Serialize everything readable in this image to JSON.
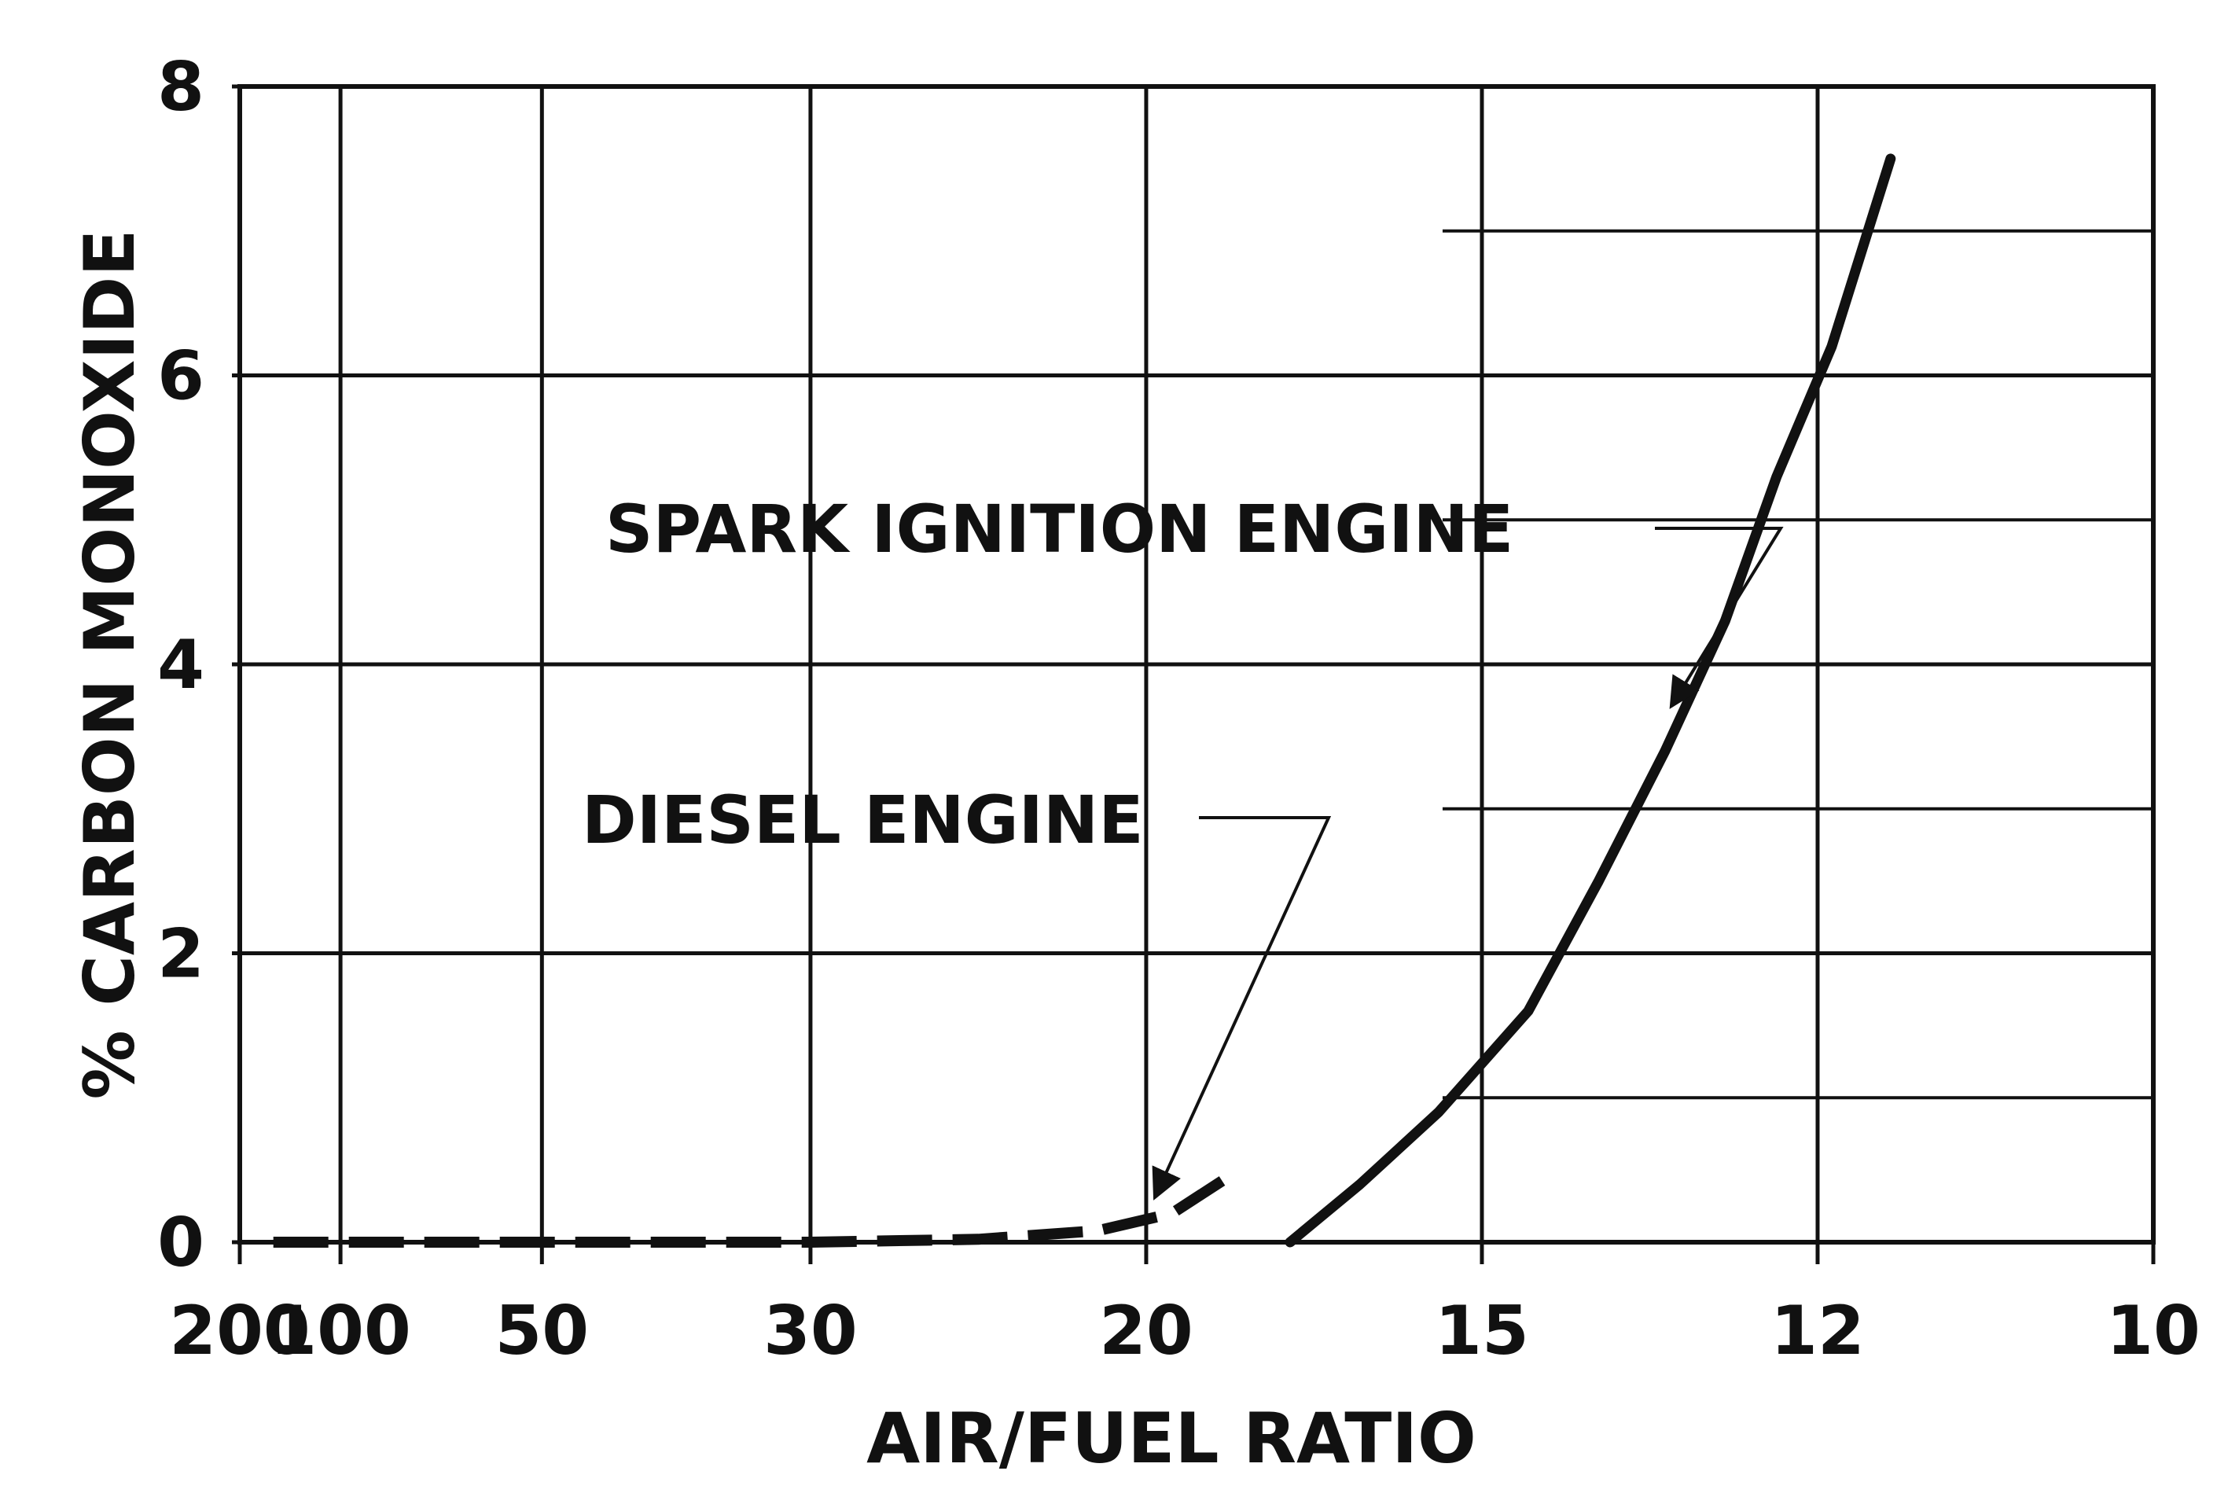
{
  "chart_data": {
    "type": "line",
    "xlabel": "AIR/FUEL RATIO",
    "ylabel": "% CARBON MONOXIDE",
    "x_scale": "reciprocal",
    "xlim": [
      200,
      10
    ],
    "ylim": [
      0,
      8
    ],
    "x_ticks": [
      200,
      100,
      50,
      30,
      20,
      15,
      12,
      10
    ],
    "y_ticks": [
      0,
      2,
      4,
      6,
      8
    ],
    "grid": true,
    "legend": "none",
    "series": [
      {
        "name": "SPARK IGNITION ENGINE",
        "style": "solid",
        "points": [
          [
            17.5,
            0.0
          ],
          [
            16.5,
            0.4
          ],
          [
            15.5,
            0.9
          ],
          [
            14.5,
            1.6
          ],
          [
            13.8,
            2.5
          ],
          [
            13.2,
            3.4
          ],
          [
            12.7,
            4.3
          ],
          [
            12.3,
            5.3
          ],
          [
            11.9,
            6.2
          ],
          [
            11.5,
            7.5
          ]
        ]
      },
      {
        "name": "DIESEL ENGINE",
        "style": "dashed",
        "points": [
          [
            150,
            0.0
          ],
          [
            100,
            0.0
          ],
          [
            50,
            0.0
          ],
          [
            30,
            0.0
          ],
          [
            24,
            0.02
          ],
          [
            21,
            0.08
          ],
          [
            19.5,
            0.2
          ],
          [
            18.5,
            0.45
          ]
        ]
      }
    ],
    "annotations": [
      {
        "text": "SPARK IGNITION ENGINE",
        "arrow_to_series": "SPARK IGNITION ENGINE",
        "x": 13.0,
        "y": 3.6
      },
      {
        "text": "DIESEL ENGINE",
        "arrow_to_series": "DIESEL ENGINE",
        "x": 19.5,
        "y": 0.2
      }
    ]
  }
}
